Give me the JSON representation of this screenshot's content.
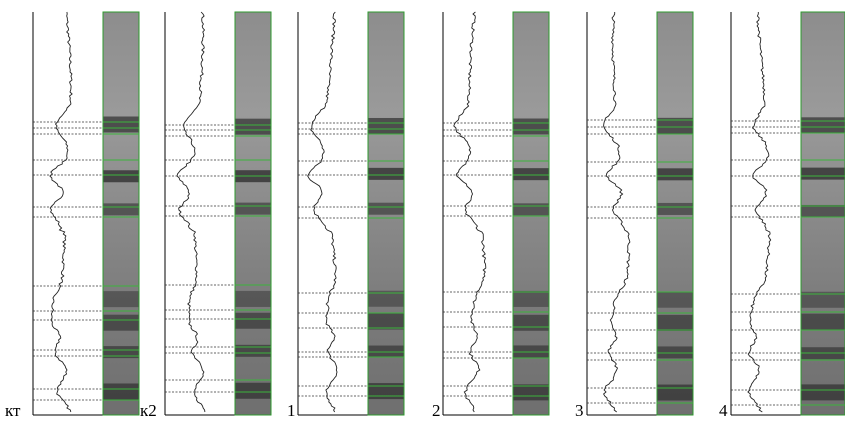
{
  "lanes": [
    {
      "label": "кт"
    },
    {
      "label": "к2"
    },
    {
      "label": "1"
    },
    {
      "label": "2"
    },
    {
      "label": "3"
    },
    {
      "label": "4"
    }
  ]
}
